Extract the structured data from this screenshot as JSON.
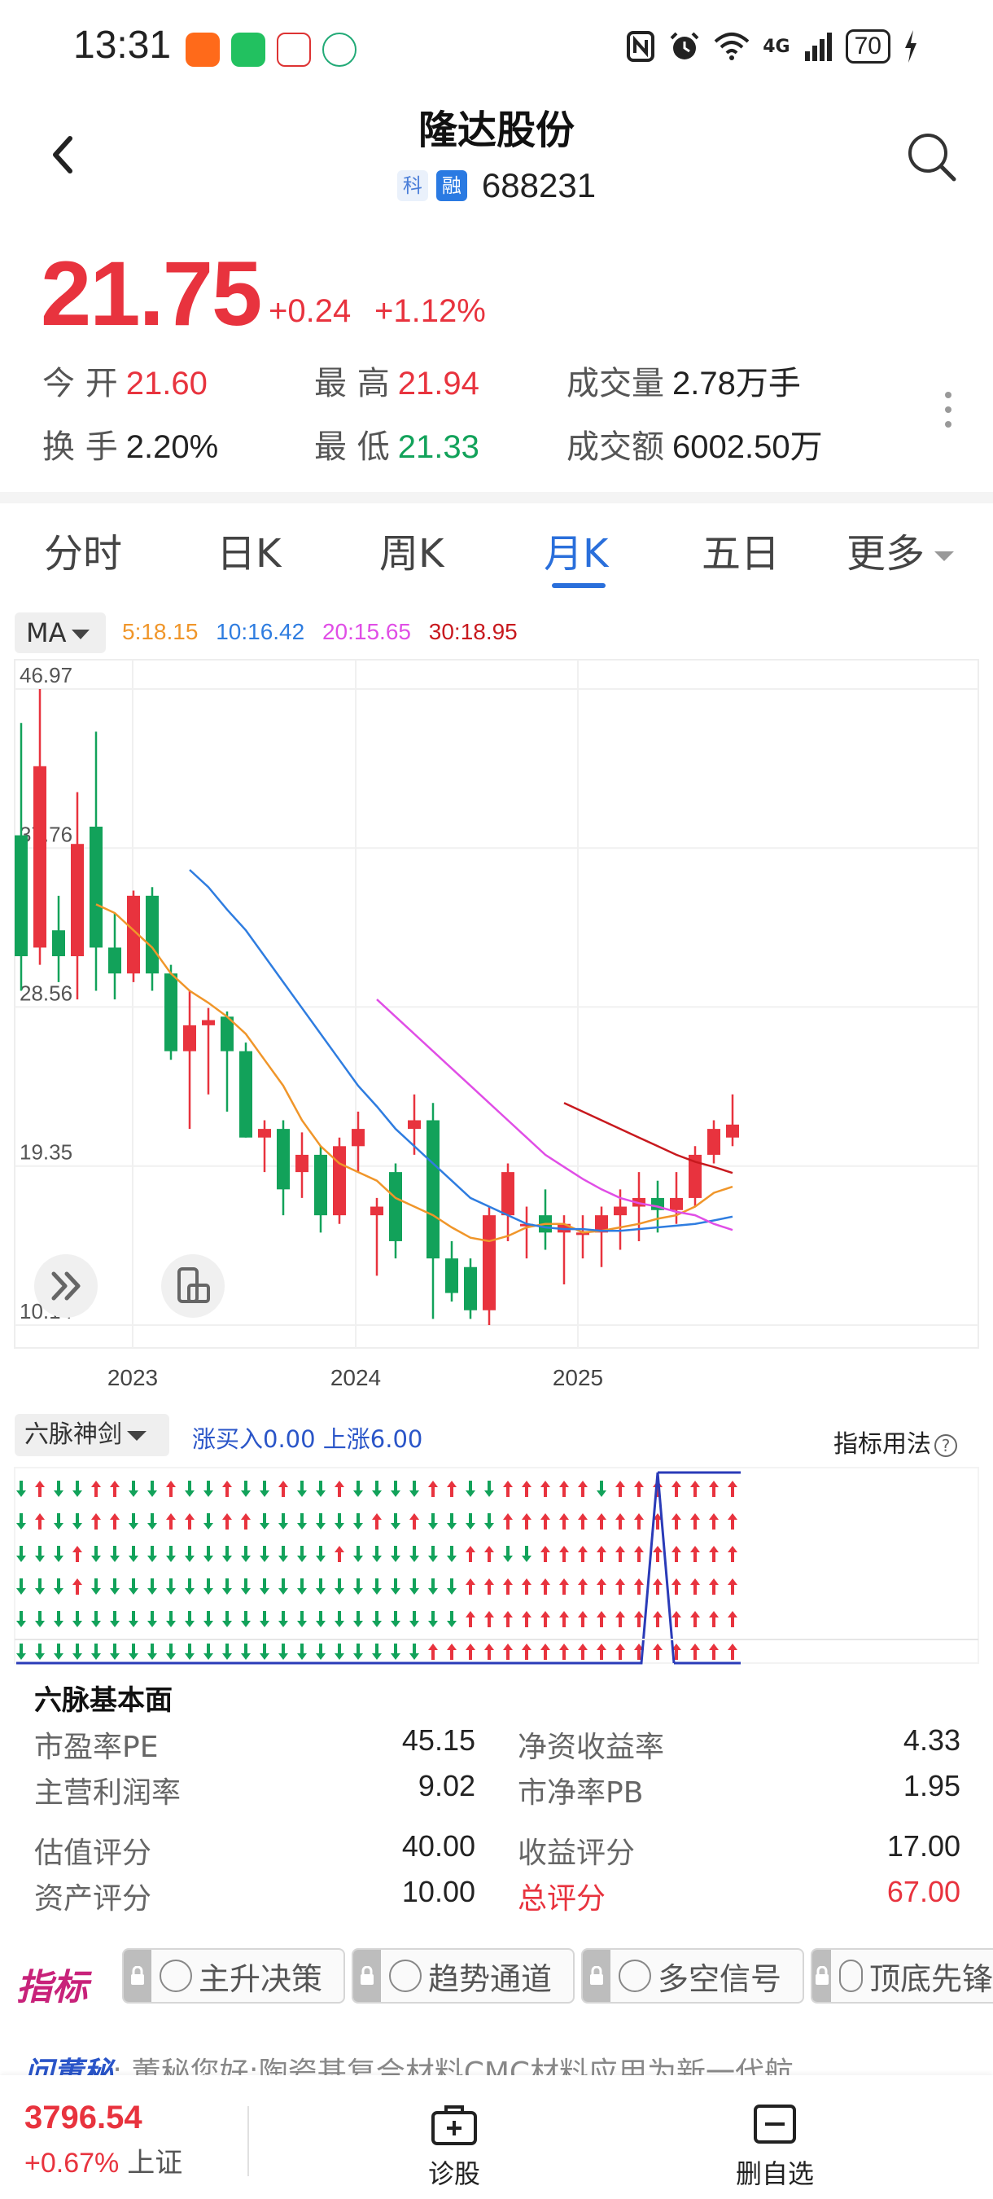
{
  "status_bar": {
    "time": "13:31",
    "battery": "70",
    "network": "4G",
    "icons": [
      "nfc-icon",
      "alarm-icon",
      "wifi-icon",
      "signal-icon",
      "battery-icon",
      "charging-icon"
    ]
  },
  "header": {
    "stock_name": "隆达股份",
    "tag_ke": "科",
    "tag_rong": "融",
    "stock_code": "688231"
  },
  "quote": {
    "price": "21.75",
    "change": "+0.24",
    "change_pct": "+1.12%",
    "open_label": "今 开",
    "open": "21.60",
    "high_label": "最 高",
    "high": "21.94",
    "volume_label": "成交量",
    "volume": "2.78万手",
    "turnover_label": "换 手",
    "turnover": "2.20%",
    "low_label": "最 低",
    "low": "21.33",
    "amount_label": "成交额",
    "amount": "6002.50万",
    "up_color": "#e8333e",
    "down_color": "#12a25a"
  },
  "tabs": [
    {
      "label": "分时",
      "active": false
    },
    {
      "label": "日K",
      "active": false
    },
    {
      "label": "周K",
      "active": false
    },
    {
      "label": "月K",
      "active": true
    },
    {
      "label": "五日",
      "active": false
    },
    {
      "label": "更多",
      "active": false
    }
  ],
  "ma": {
    "selector": "MA",
    "ma5": "5:18.15",
    "ma10": "10:16.42",
    "ma20": "20:15.65",
    "ma30": "30:18.95",
    "colors": {
      "ma5": "#f0962a",
      "ma10": "#2f7de0",
      "ma20": "#e04ee6",
      "ma30": "#c8191e"
    }
  },
  "chart_data": {
    "type": "candlestick",
    "period": "monthly",
    "y_ticks": [
      "46.97",
      "37.76",
      "28.56",
      "19.35",
      "10.14"
    ],
    "ylim": [
      10.14,
      46.97
    ],
    "x_labels": [
      "2023",
      "2024",
      "2025"
    ],
    "candles": [
      {
        "o": 38.5,
        "c": 31.5,
        "h": 45.0,
        "l": 29.5
      },
      {
        "o": 32.0,
        "c": 42.5,
        "h": 46.97,
        "l": 31.0
      },
      {
        "o": 33.0,
        "c": 31.5,
        "h": 35.0,
        "l": 30.0
      },
      {
        "o": 31.5,
        "c": 38.0,
        "h": 41.0,
        "l": 29.0
      },
      {
        "o": 39.0,
        "c": 32.0,
        "h": 44.5,
        "l": 29.5
      },
      {
        "o": 32.0,
        "c": 30.5,
        "h": 34.0,
        "l": 29.0
      },
      {
        "o": 30.5,
        "c": 35.0,
        "h": 35.3,
        "l": 30.0
      },
      {
        "o": 35.0,
        "c": 30.5,
        "h": 35.5,
        "l": 29.5
      },
      {
        "o": 30.5,
        "c": 26.0,
        "h": 31.0,
        "l": 25.5
      },
      {
        "o": 26.0,
        "c": 27.5,
        "h": 29.5,
        "l": 21.5
      },
      {
        "o": 27.5,
        "c": 27.8,
        "h": 28.5,
        "l": 23.5
      },
      {
        "o": 28.0,
        "c": 26.0,
        "h": 28.3,
        "l": 22.5
      },
      {
        "o": 26.0,
        "c": 21.0,
        "h": 26.5,
        "l": 21.0
      },
      {
        "o": 21.0,
        "c": 21.5,
        "h": 22.0,
        "l": 19.0
      },
      {
        "o": 21.5,
        "c": 18.0,
        "h": 22.0,
        "l": 16.5
      },
      {
        "o": 19.0,
        "c": 20.0,
        "h": 21.3,
        "l": 17.5
      },
      {
        "o": 20.0,
        "c": 16.5,
        "h": 20.5,
        "l": 15.5
      },
      {
        "o": 16.5,
        "c": 20.5,
        "h": 21.0,
        "l": 16.0
      },
      {
        "o": 20.5,
        "c": 21.5,
        "h": 22.5,
        "l": 19.0
      },
      {
        "o": 16.5,
        "c": 17.0,
        "h": 17.5,
        "l": 13.0
      },
      {
        "o": 19.0,
        "c": 15.0,
        "h": 19.5,
        "l": 14.0
      },
      {
        "o": 21.5,
        "c": 22.0,
        "h": 23.5,
        "l": 20.0
      },
      {
        "o": 22.0,
        "c": 14.0,
        "h": 23.0,
        "l": 10.5
      },
      {
        "o": 14.0,
        "c": 12.0,
        "h": 15.0,
        "l": 11.5
      },
      {
        "o": 13.5,
        "c": 11.0,
        "h": 14.0,
        "l": 10.5
      },
      {
        "o": 11.0,
        "c": 16.5,
        "h": 17.0,
        "l": 10.14
      },
      {
        "o": 16.5,
        "c": 19.0,
        "h": 19.5,
        "l": 15.0
      },
      {
        "o": 16.0,
        "c": 16.0,
        "h": 17.0,
        "l": 14.0
      },
      {
        "o": 16.5,
        "c": 15.5,
        "h": 18.0,
        "l": 14.5
      },
      {
        "o": 15.5,
        "c": 16.0,
        "h": 16.5,
        "l": 12.5
      },
      {
        "o": 15.5,
        "c": 15.5,
        "h": 16.5,
        "l": 14.0
      },
      {
        "o": 15.5,
        "c": 16.5,
        "h": 17.0,
        "l": 13.5
      },
      {
        "o": 16.5,
        "c": 17.0,
        "h": 18.0,
        "l": 14.5
      },
      {
        "o": 17.0,
        "c": 17.5,
        "h": 19.0,
        "l": 15.0
      },
      {
        "o": 17.5,
        "c": 16.8,
        "h": 18.5,
        "l": 15.5
      },
      {
        "o": 16.8,
        "c": 17.5,
        "h": 19.0,
        "l": 16.0
      },
      {
        "o": 17.5,
        "c": 20.0,
        "h": 20.5,
        "l": 17.0
      },
      {
        "o": 20.0,
        "c": 21.5,
        "h": 22.0,
        "l": 19.5
      },
      {
        "o": 21.0,
        "c": 21.75,
        "h": 23.5,
        "l": 20.5
      }
    ],
    "ma_series": [
      {
        "key": "ma5",
        "name": "MA5",
        "values": [
          null,
          null,
          null,
          null,
          34.5,
          34.0,
          33.0,
          32.0,
          30.5,
          29.5,
          28.8,
          28.0,
          27.0,
          25.5,
          24.0,
          22.0,
          20.5,
          19.5,
          19.0,
          18.5,
          17.5,
          17.0,
          16.5,
          15.8,
          15.2,
          15.0,
          15.3,
          15.8,
          16.0,
          16.0,
          15.5,
          15.6,
          15.8,
          16.0,
          16.3,
          16.5,
          17.0,
          17.8,
          18.15
        ]
      },
      {
        "key": "ma10",
        "name": "MA10",
        "values": [
          null,
          null,
          null,
          null,
          null,
          null,
          null,
          null,
          null,
          36.5,
          35.5,
          34.2,
          33.0,
          31.5,
          30.0,
          28.5,
          27.0,
          25.5,
          24.0,
          22.8,
          21.5,
          20.5,
          19.5,
          18.5,
          17.5,
          17.0,
          16.5,
          16.0,
          15.8,
          15.7,
          15.7,
          15.6,
          15.6,
          15.7,
          15.8,
          15.9,
          16.0,
          16.2,
          16.42
        ]
      },
      {
        "key": "ma20",
        "name": "MA20",
        "values": [
          null,
          null,
          null,
          null,
          null,
          null,
          null,
          null,
          null,
          null,
          null,
          null,
          null,
          null,
          null,
          null,
          null,
          null,
          null,
          29.0,
          28.0,
          27.0,
          26.0,
          25.0,
          24.0,
          23.0,
          22.0,
          21.0,
          20.0,
          19.3,
          18.6,
          18.0,
          17.5,
          17.2,
          17.0,
          16.7,
          16.5,
          16.0,
          15.65
        ]
      },
      {
        "key": "ma30",
        "name": "MA30",
        "values": [
          null,
          null,
          null,
          null,
          null,
          null,
          null,
          null,
          null,
          null,
          null,
          null,
          null,
          null,
          null,
          null,
          null,
          null,
          null,
          null,
          null,
          null,
          null,
          null,
          null,
          null,
          null,
          null,
          null,
          23.0,
          22.5,
          22.0,
          21.5,
          21.0,
          20.5,
          20.0,
          19.6,
          19.3,
          18.95
        ]
      }
    ]
  },
  "indicator": {
    "selector": "六脉神剑",
    "values_text": "涨买入0.00  上涨6.00",
    "help": "指标用法",
    "rows": 6,
    "signals": [
      "dudduudduddudduddudddduudduuuuuduuuuuuu",
      "dudduudduuduuddddddududddduuuuuuuuuuuuu",
      "dddudddddddddddddudddddduudduuuuuuuuuuu",
      "dddudddddddddddddddddddduuuuuuuuuuuuuuu",
      "dddddddddddddddddddddddduuuuuuuuuuuuuuu",
      "dddddddddddddddddddddduuuuuuuuuuuuuuuuu"
    ]
  },
  "fundamentals": {
    "title": "六脉基本面",
    "items": [
      {
        "label": "市盈率PE",
        "value": "45.15"
      },
      {
        "label": "净资收益率",
        "value": "4.33"
      },
      {
        "label": "主营利润率",
        "value": "9.02"
      },
      {
        "label": "市净率PB",
        "value": "1.95"
      },
      {
        "label": "估值评分",
        "value": "40.00"
      },
      {
        "label": "收益评分",
        "value": "17.00"
      },
      {
        "label": "资产评分",
        "value": "10.00"
      },
      {
        "label": "总评分",
        "value": "67.00"
      }
    ]
  },
  "strategy": {
    "label": "指标",
    "buttons": [
      "主升决策",
      "趋势通道",
      "多空信号",
      "顶底先锋"
    ]
  },
  "news": {
    "tag": "问董秘",
    "text": "董秘您好:陶瓷基复合材料CMC材料应用为新一代航"
  },
  "bottom_bar": {
    "index_value": "3796.54",
    "index_change": "+0.67%",
    "index_name": "上证",
    "diagnose": "诊股",
    "remove_watch": "删自选"
  }
}
